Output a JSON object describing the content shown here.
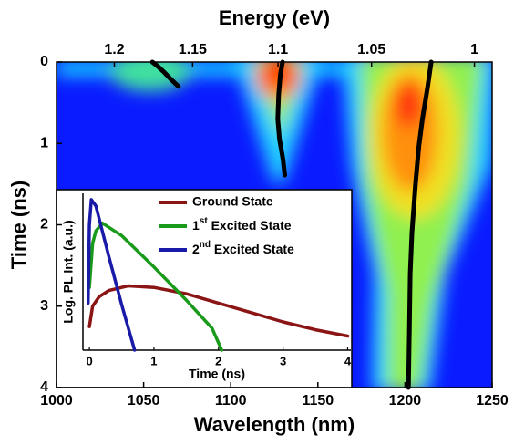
{
  "chart_data": [
    {
      "type": "line",
      "x_label": "Wavelength (nm)",
      "x2_label": "Energy (eV)",
      "y_label": "Time (ns)",
      "xlim": [
        1000,
        1250
      ],
      "xticks": [
        1000,
        1050,
        1100,
        1150,
        1200,
        1250
      ],
      "x2ticks": [
        1.2,
        1.15,
        1.1,
        1.05,
        1
      ],
      "ylim": [
        0,
        4
      ],
      "yticks": [
        0,
        1,
        2,
        3,
        4
      ],
      "y_inverted": true,
      "series": [
        {
          "color": "#000000",
          "x": [
            1055,
            1058,
            1062,
            1066,
            1070
          ],
          "values": [
            0,
            0.05,
            0.13,
            0.22,
            0.3
          ]
        },
        {
          "color": "#000000",
          "x": [
            1129.7,
            1128.5,
            1127.5,
            1127,
            1128,
            1130,
            1131
          ],
          "values": [
            0,
            0.15,
            0.4,
            0.7,
            0.95,
            1.2,
            1.39
          ]
        },
        {
          "color": "#000000",
          "x": [
            1215,
            1213,
            1210,
            1208,
            1206,
            1204,
            1203,
            1202.5,
            1202
          ],
          "values": [
            0,
            0.3,
            0.7,
            1.03,
            1.5,
            2.1,
            2.6,
            3.3,
            4
          ]
        }
      ]
    },
    {
      "type": "line",
      "x_label": "Time (ns)",
      "y_label": "Log. PL Int. (a.u.)",
      "xlim": [
        -0.1,
        4.05
      ],
      "xticks": [
        0,
        1,
        2,
        3,
        4
      ],
      "ylim": [
        0,
        1
      ],
      "legend": "upper right",
      "series": [
        {
          "name": "Ground State",
          "color": "#8b1414",
          "x": [
            0,
            0.05,
            0.15,
            0.3,
            0.6,
            1,
            1.5,
            2,
            2.5,
            3,
            3.5,
            4
          ],
          "values": [
            0.15,
            0.28,
            0.34,
            0.38,
            0.41,
            0.4,
            0.36,
            0.3,
            0.24,
            0.18,
            0.13,
            0.09
          ]
        },
        {
          "name": "1st Excited State",
          "color": "#1a9a1a",
          "x": [
            0,
            0.05,
            0.1,
            0.2,
            0.5,
            1,
            1.5,
            1.9,
            2.05
          ],
          "values": [
            0.4,
            0.68,
            0.76,
            0.81,
            0.73,
            0.53,
            0.32,
            0.14,
            0
          ]
        },
        {
          "name": "2nd Excited State",
          "color": "#1a1aa8",
          "x": [
            -0.02,
            0,
            0.03,
            0.1,
            0.3,
            0.5,
            0.7
          ],
          "values": [
            0.3,
            0.8,
            0.96,
            0.92,
            0.6,
            0.29,
            0
          ]
        }
      ]
    }
  ]
}
